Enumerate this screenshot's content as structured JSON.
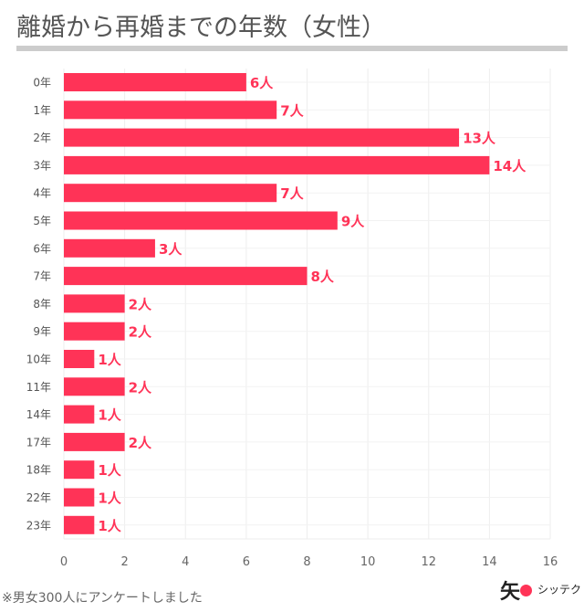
{
  "title": "離婚から再婚までの年数（女性）",
  "footnote": "※男女300人にアンケートしました",
  "logo": {
    "mark": "矢",
    "text": "シッテク"
  },
  "chart_data": {
    "type": "bar",
    "orientation": "horizontal",
    "categories": [
      "0年",
      "1年",
      "2年",
      "3年",
      "4年",
      "5年",
      "6年",
      "7年",
      "8年",
      "9年",
      "10年",
      "11年",
      "14年",
      "17年",
      "18年",
      "22年",
      "23年"
    ],
    "values": [
      6,
      7,
      13,
      14,
      7,
      9,
      3,
      8,
      2,
      2,
      1,
      2,
      1,
      2,
      1,
      1,
      1
    ],
    "value_suffix": "人",
    "xlim": [
      0,
      16
    ],
    "xticks": [
      0,
      2,
      4,
      6,
      8,
      10,
      12,
      14,
      16
    ],
    "grid": true,
    "bar_color": "#ff3357",
    "label_color": "#ff3357"
  }
}
